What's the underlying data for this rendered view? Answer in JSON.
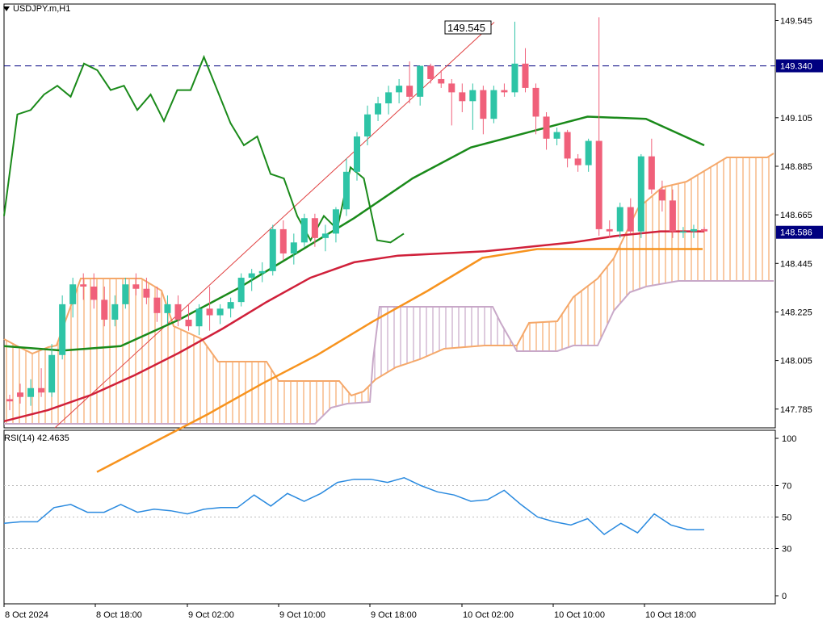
{
  "symbol_label": "USDJPY.m,H1",
  "rsi_label": "RSI(14) 42.4635",
  "price_axis": [
    "149.545",
    "149.105",
    "148.885",
    "148.665",
    "148.445",
    "148.225",
    "148.005",
    "147.785"
  ],
  "rsi_axis": [
    "100",
    "70",
    "50",
    "30",
    "0"
  ],
  "time_axis": [
    "8 Oct 2024",
    "8 Oct 18:00",
    "9 Oct 02:00",
    "9 Oct 10:00",
    "9 Oct 18:00",
    "10 Oct 02:00",
    "10 Oct 10:00",
    "10 Oct 18:00"
  ],
  "horizontal_line_label": "149.340",
  "current_price_label": "148.586",
  "trendline_label": "149.545",
  "colors": {
    "bull": "#2ec4a6",
    "bear": "#f0607a",
    "tenkan": "#1a8a1a",
    "ma_red": "#d0203a",
    "ma_orange": "#f7931e",
    "cloud_a": "#f5a86a",
    "cloud_b": "#c8a8c8",
    "rsi": "#2a8adf",
    "hline": "#000080",
    "current": "#000080"
  },
  "chart_data": {
    "type": "candlestick",
    "ylim": [
      147.7,
      149.62
    ],
    "rsi_ylim": [
      0,
      100
    ],
    "rsi_levels": [
      70,
      50,
      30
    ],
    "candles": [
      [
        147.83,
        147.85,
        147.78,
        147.82
      ],
      [
        147.86,
        147.9,
        147.81,
        147.84
      ],
      [
        147.84,
        147.92,
        147.8,
        147.88
      ],
      [
        147.88,
        147.97,
        147.84,
        147.86
      ],
      [
        147.86,
        148.08,
        147.84,
        148.03
      ],
      [
        148.03,
        148.3,
        148.01,
        148.26
      ],
      [
        148.26,
        148.38,
        148.2,
        148.35
      ],
      [
        148.35,
        148.4,
        148.28,
        148.34
      ],
      [
        148.34,
        148.4,
        148.24,
        148.28
      ],
      [
        148.28,
        148.34,
        148.16,
        148.19
      ],
      [
        148.19,
        148.3,
        148.16,
        148.26
      ],
      [
        148.26,
        148.38,
        148.24,
        148.35
      ],
      [
        148.35,
        148.4,
        148.3,
        148.33
      ],
      [
        148.33,
        148.38,
        148.26,
        148.29
      ],
      [
        148.29,
        148.34,
        148.18,
        148.22
      ],
      [
        148.22,
        148.3,
        148.17,
        148.26
      ],
      [
        148.26,
        148.3,
        148.16,
        148.19
      ],
      [
        148.19,
        148.26,
        148.14,
        148.16
      ],
      [
        148.16,
        148.26,
        148.12,
        148.24
      ],
      [
        148.24,
        148.34,
        148.14,
        148.21
      ],
      [
        148.21,
        148.26,
        148.17,
        148.24
      ],
      [
        148.24,
        148.29,
        148.2,
        148.27
      ],
      [
        148.27,
        148.4,
        148.25,
        148.38
      ],
      [
        148.38,
        148.42,
        148.32,
        148.4
      ],
      [
        148.4,
        148.45,
        148.36,
        148.41
      ],
      [
        148.41,
        148.62,
        148.39,
        148.6
      ],
      [
        148.6,
        148.64,
        148.46,
        148.49
      ],
      [
        148.49,
        148.58,
        148.44,
        148.54
      ],
      [
        148.54,
        148.67,
        148.52,
        148.65
      ],
      [
        148.65,
        148.67,
        148.52,
        148.56
      ],
      [
        148.56,
        148.62,
        148.5,
        148.58
      ],
      [
        148.58,
        148.7,
        148.54,
        148.69
      ],
      [
        148.69,
        148.92,
        148.66,
        148.86
      ],
      [
        148.86,
        149.04,
        148.82,
        149.02
      ],
      [
        149.02,
        149.16,
        148.98,
        149.12
      ],
      [
        149.12,
        149.2,
        149.09,
        149.17
      ],
      [
        149.17,
        149.25,
        149.12,
        149.22
      ],
      [
        149.22,
        149.28,
        149.17,
        149.25
      ],
      [
        149.25,
        149.36,
        149.17,
        149.2
      ],
      [
        149.2,
        149.34,
        149.16,
        149.34
      ],
      [
        149.34,
        149.35,
        149.26,
        149.28
      ],
      [
        149.28,
        149.32,
        149.24,
        149.26
      ],
      [
        149.26,
        149.28,
        149.07,
        149.22
      ],
      [
        149.22,
        149.26,
        149.13,
        149.18
      ],
      [
        149.18,
        149.26,
        149.05,
        149.23
      ],
      [
        149.23,
        149.25,
        149.03,
        149.1
      ],
      [
        149.1,
        149.25,
        149.08,
        149.23
      ],
      [
        149.23,
        149.26,
        149.2,
        149.22
      ],
      [
        149.22,
        149.54,
        149.2,
        149.35
      ],
      [
        149.35,
        149.42,
        149.22,
        149.24
      ],
      [
        149.24,
        149.26,
        149.03,
        149.11
      ],
      [
        149.11,
        149.13,
        148.96,
        149.01
      ],
      [
        149.01,
        149.06,
        148.98,
        149.04
      ],
      [
        149.04,
        149.05,
        148.88,
        148.92
      ],
      [
        148.92,
        148.94,
        148.86,
        148.89
      ],
      [
        148.89,
        149.01,
        148.86,
        149.0
      ],
      [
        149.0,
        149.56,
        148.57,
        148.6
      ],
      [
        148.6,
        148.64,
        148.56,
        148.59
      ],
      [
        148.59,
        148.72,
        148.56,
        148.7
      ],
      [
        148.7,
        148.74,
        148.58,
        148.59
      ],
      [
        148.59,
        148.94,
        148.56,
        148.93
      ],
      [
        148.93,
        149.01,
        148.76,
        148.78
      ],
      [
        148.78,
        148.82,
        148.68,
        148.73
      ],
      [
        148.73,
        148.78,
        148.56,
        148.59
      ],
      [
        148.59,
        148.61,
        148.56,
        148.59
      ],
      [
        148.59,
        148.62,
        148.56,
        148.6
      ],
      [
        148.6,
        148.61,
        148.59,
        148.59
      ]
    ],
    "tenkan": [
      148.66,
      149.12,
      149.14,
      149.21,
      149.25,
      149.2,
      149.35,
      149.32,
      149.23,
      149.25,
      149.14,
      149.21,
      149.09,
      149.23,
      149.23,
      149.38,
      149.23,
      149.08,
      148.98,
      149.02,
      148.85,
      148.83,
      148.66,
      148.55,
      148.66,
      148.6,
      148.88,
      148.83,
      148.55,
      148.54,
      148.58
    ],
    "ma_red": [
      147.73,
      147.78,
      147.85,
      147.94,
      148.04,
      148.15,
      148.27,
      148.38,
      148.45,
      148.48,
      148.49,
      148.5,
      148.52,
      148.54,
      148.57,
      148.59,
      148.59
    ],
    "ma_orange": [
      147.5,
      147.63,
      147.76,
      147.9,
      148.03,
      148.18,
      148.32,
      148.47,
      148.51,
      148.51,
      148.51,
      148.51
    ],
    "ma_green": [
      148.07,
      148.05,
      148.07,
      148.19,
      148.33,
      148.49,
      148.65,
      148.83,
      148.97,
      149.04,
      149.11,
      149.1,
      148.98
    ],
    "rsi": [
      46,
      47,
      47,
      56,
      58,
      53,
      53,
      58,
      53,
      55,
      54,
      52,
      55,
      56,
      56,
      64,
      57,
      65,
      60,
      65,
      72,
      74,
      74,
      72,
      75,
      70,
      66,
      64,
      60,
      61,
      67,
      58,
      50,
      47,
      45,
      49,
      39,
      46,
      40,
      52,
      45,
      42,
      42
    ]
  }
}
